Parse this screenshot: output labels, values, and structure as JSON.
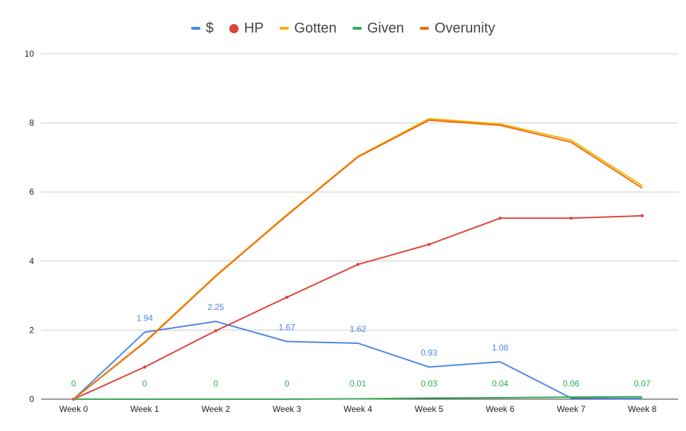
{
  "chart_data": {
    "type": "line",
    "categories": [
      "Week 0",
      "Week 1",
      "Week 2",
      "Week 3",
      "Week 4",
      "Week 5",
      "Week 6",
      "Week 7",
      "Week 8"
    ],
    "ylim": [
      0,
      10
    ],
    "yticks": [
      0,
      2,
      4,
      6,
      8,
      10
    ],
    "grid": true,
    "legend_position": "top",
    "series": [
      {
        "name": "$",
        "color": "#4a86e8",
        "marker": "line",
        "show_labels": true,
        "values": [
          0,
          1.94,
          2.25,
          1.67,
          1.62,
          0.93,
          1.08,
          0.03,
          0.02
        ],
        "labels": [
          "",
          "1.94",
          "2.25",
          "1.67",
          "1.62",
          "0.93",
          "1.08",
          "",
          ""
        ]
      },
      {
        "name": "HP",
        "color": "#db4437",
        "marker": "dot",
        "show_labels": false,
        "values": [
          0,
          0.93,
          1.98,
          2.95,
          3.9,
          4.48,
          5.24,
          5.24,
          5.31
        ]
      },
      {
        "name": "Gotten",
        "color": "#f4b400",
        "marker": "line",
        "show_labels": false,
        "values": [
          0,
          1.66,
          3.58,
          5.34,
          7.03,
          8.12,
          7.97,
          7.5,
          6.18
        ]
      },
      {
        "name": "Given",
        "color": "#34a853",
        "marker": "line",
        "show_labels": true,
        "values": [
          0,
          0,
          0,
          0,
          0.01,
          0.03,
          0.04,
          0.06,
          0.07
        ],
        "labels": [
          "0",
          "0",
          "0",
          "0",
          "0.01",
          "0.03",
          "0.04",
          "0.06",
          "0.07"
        ]
      },
      {
        "name": "Overunity",
        "color": "#ed6d0e",
        "marker": "line",
        "show_labels": false,
        "values": [
          0,
          1.64,
          3.56,
          5.32,
          7.01,
          8.08,
          7.93,
          7.44,
          6.11
        ]
      }
    ]
  }
}
